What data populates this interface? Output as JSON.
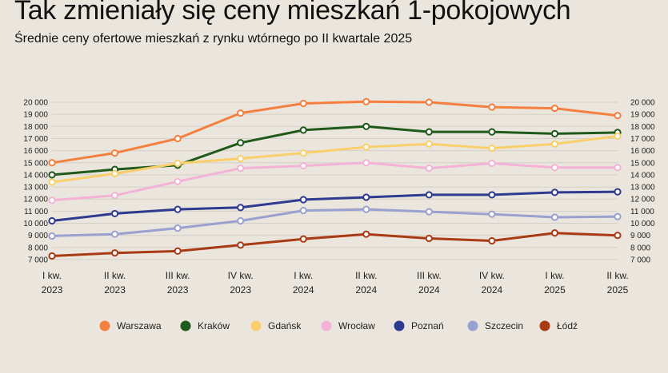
{
  "title": "Tak zmieniały się ceny mieszkań 1-pokojowych",
  "subtitle": "Średnie ceny ofertowe mieszkań z rynku wtórnego po II kwartale 2025",
  "chart_data": {
    "type": "line",
    "title": "Tak zmieniały się ceny mieszkań 1-pokojowych",
    "subtitle": "Średnie ceny ofertowe mieszkań z rynku wtórnego po II kwartale 2025",
    "xlabel": "",
    "ylabel": "",
    "ylim": [
      7000,
      20000
    ],
    "yticks": [
      7000,
      8000,
      9000,
      10000,
      11000,
      12000,
      13000,
      14000,
      15000,
      16000,
      17000,
      18000,
      19000,
      20000
    ],
    "ytick_labels": [
      "7 000",
      "8 000",
      "9 000",
      "10 000",
      "11 000",
      "12 000",
      "13 000",
      "14 000",
      "15 000",
      "16 000",
      "17 000",
      "18 000",
      "19 000",
      "20 000"
    ],
    "y_axis_both_sides": true,
    "grid": true,
    "legend_position": "bottom",
    "categories": [
      [
        "I kw.",
        "2023"
      ],
      [
        "II kw.",
        "2023"
      ],
      [
        "III kw.",
        "2023"
      ],
      [
        "IV kw.",
        "2023"
      ],
      [
        "I kw.",
        "2024"
      ],
      [
        "II kw.",
        "2024"
      ],
      [
        "III kw.",
        "2024"
      ],
      [
        "IV kw.",
        "2024"
      ],
      [
        "I kw.",
        "2025"
      ],
      [
        "II kw.",
        "2025"
      ]
    ],
    "series": [
      {
        "name": "Warszawa",
        "color": "#f47f3f",
        "values": [
          15000,
          15800,
          17000,
          19100,
          19900,
          20050,
          20000,
          19600,
          19500,
          18900
        ]
      },
      {
        "name": "Kraków",
        "color": "#1f5a1a",
        "values": [
          14000,
          14450,
          14800,
          16650,
          17700,
          18000,
          17550,
          17550,
          17400,
          17500
        ]
      },
      {
        "name": "Gdańsk",
        "color": "#f9cf6b",
        "values": [
          13400,
          14100,
          14950,
          15350,
          15800,
          16300,
          16550,
          16200,
          16550,
          17200
        ]
      },
      {
        "name": "Wrocław",
        "color": "#f2b3d6",
        "values": [
          11900,
          12300,
          13450,
          14550,
          14750,
          15000,
          14550,
          14950,
          14600,
          14600
        ]
      },
      {
        "name": "Poznań",
        "color": "#2e3a8f",
        "values": [
          10200,
          10800,
          11150,
          11300,
          11950,
          12150,
          12350,
          12350,
          12550,
          12600
        ]
      },
      {
        "name": "Szczecin",
        "color": "#9aa0cf",
        "values": [
          8950,
          9100,
          9600,
          10200,
          11050,
          11150,
          10950,
          10750,
          10500,
          10550
        ]
      },
      {
        "name": "Łódź",
        "color": "#a83a14",
        "values": [
          7300,
          7550,
          7700,
          8200,
          8700,
          9100,
          8750,
          8550,
          9200,
          9000
        ]
      }
    ]
  }
}
